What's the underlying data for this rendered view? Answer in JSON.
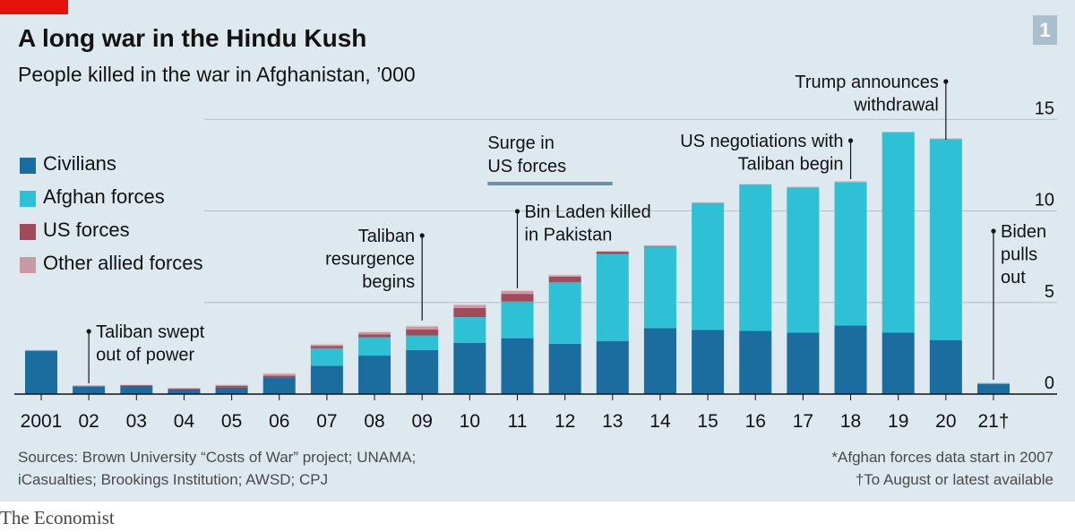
{
  "header": {
    "title": "A long war in the Hindu Kush",
    "subtitle": "People killed in the war in Afghanistan, ’000",
    "chart_number": "1"
  },
  "legend": [
    {
      "label": "Civilians",
      "color": "#1a6d9e"
    },
    {
      "label": "Afghan forces",
      "color": "#2ec1d6"
    },
    {
      "label": "US forces",
      "color": "#a34a5a"
    },
    {
      "label": "Other allied forces",
      "color": "#c89aa4"
    }
  ],
  "footer": {
    "source_line1": "Sources: Brown University “Costs of War” project; UNAMA;",
    "source_line2": "iCasualties; Brookings Institution; AWSD; CPJ",
    "note1": "*Afghan forces data start in 2007",
    "note2": "†To August or latest available",
    "brand": "The Economist"
  },
  "chart_data": {
    "type": "bar",
    "stacked": true,
    "categories": [
      "2001",
      "02",
      "03",
      "04",
      "05",
      "06",
      "07",
      "08",
      "09",
      "10",
      "11",
      "12",
      "13",
      "14",
      "15",
      "16",
      "17",
      "18",
      "19",
      "20",
      "21†"
    ],
    "series": [
      {
        "name": "Civilians",
        "color": "#1a6d9e",
        "values": [
          2.4,
          0.4,
          0.45,
          0.25,
          0.35,
          0.9,
          1.55,
          2.1,
          2.4,
          2.8,
          3.05,
          2.75,
          2.9,
          3.6,
          3.5,
          3.45,
          3.35,
          3.75,
          3.35,
          2.95,
          0.6
        ]
      },
      {
        "name": "Afghan forces",
        "color": "#2ec1d6",
        "values": [
          0,
          0,
          0,
          0,
          0,
          0,
          0.95,
          1.0,
          0.8,
          1.4,
          2.0,
          3.35,
          4.75,
          4.45,
          6.95,
          8.0,
          7.95,
          7.85,
          10.95,
          11.0,
          0
        ]
      },
      {
        "name": "US forces",
        "color": "#a34a5a",
        "values": [
          0,
          0.05,
          0.05,
          0.05,
          0.1,
          0.1,
          0.12,
          0.16,
          0.32,
          0.5,
          0.42,
          0.31,
          0.13,
          0.06,
          0.02,
          0.02,
          0.02,
          0.01,
          0.02,
          0.01,
          0
        ]
      },
      {
        "name": "Other allied forces",
        "color": "#c89aa4",
        "values": [
          0,
          0.02,
          0.03,
          0.03,
          0.05,
          0.15,
          0.12,
          0.16,
          0.21,
          0.2,
          0.2,
          0.12,
          0.05,
          0.02,
          0.01,
          0.01,
          0,
          0,
          0,
          0,
          0
        ]
      }
    ],
    "yticks": [
      0,
      5,
      10,
      15
    ],
    "ylim": [
      0,
      16
    ],
    "xlabel": "",
    "ylabel": "",
    "grid": true,
    "range_marker": {
      "label_line1": "Surge in",
      "label_line2": "US forces",
      "from": "10",
      "to": "13"
    },
    "annotations": [
      {
        "category": "02",
        "lines": [
          "Taliban swept",
          "out of power"
        ],
        "anchor": "left"
      },
      {
        "category": "09",
        "lines": [
          "Taliban",
          "resurgence",
          "begins"
        ],
        "anchor": "right"
      },
      {
        "category": "11",
        "lines": [
          "Bin Laden killed",
          "in Pakistan"
        ],
        "anchor": "left"
      },
      {
        "category": "18",
        "lines": [
          "US negotiations with",
          "Taliban begin"
        ],
        "anchor": "right"
      },
      {
        "category": "20",
        "lines": [
          "Trump announces",
          "withdrawal"
        ],
        "anchor": "right"
      },
      {
        "category": "21†",
        "lines": [
          "Biden",
          "pulls",
          "out"
        ],
        "anchor": "left"
      }
    ]
  }
}
